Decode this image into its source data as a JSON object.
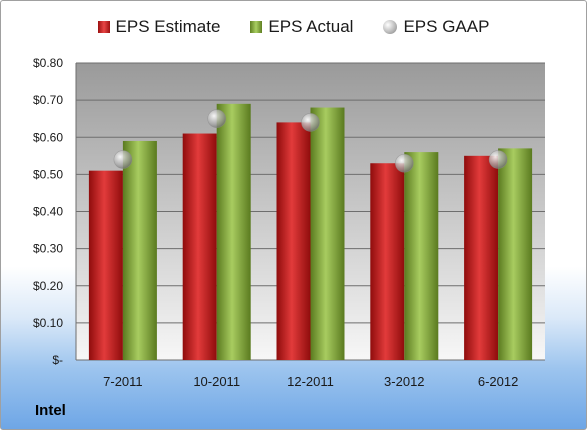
{
  "chart_data": {
    "type": "bar",
    "categories": [
      "7-2011",
      "10-2011",
      "12-2011",
      "3-2012",
      "6-2012"
    ],
    "series": [
      {
        "name": "EPS Estimate",
        "type": "bar",
        "values": [
          0.51,
          0.61,
          0.64,
          0.53,
          0.55
        ],
        "color": "#c81e1e"
      },
      {
        "name": "EPS Actual",
        "type": "bar",
        "values": [
          0.59,
          0.69,
          0.68,
          0.56,
          0.57
        ],
        "color": "#8db548"
      },
      {
        "name": "EPS GAAP",
        "type": "marker",
        "values": [
          0.54,
          0.65,
          0.64,
          0.53,
          0.54
        ],
        "color": "#bfbfbf"
      }
    ],
    "ylim": [
      0,
      0.8
    ],
    "yticks": [
      0,
      0.1,
      0.2,
      0.3,
      0.4,
      0.5,
      0.6,
      0.7,
      0.8
    ],
    "ytick_labels": [
      "$-",
      "$0.10",
      "$0.20",
      "$0.30",
      "$0.40",
      "$0.50",
      "$0.60",
      "$0.70",
      "$0.80"
    ],
    "grid": true,
    "legend_position": "top"
  },
  "company": "Intel"
}
